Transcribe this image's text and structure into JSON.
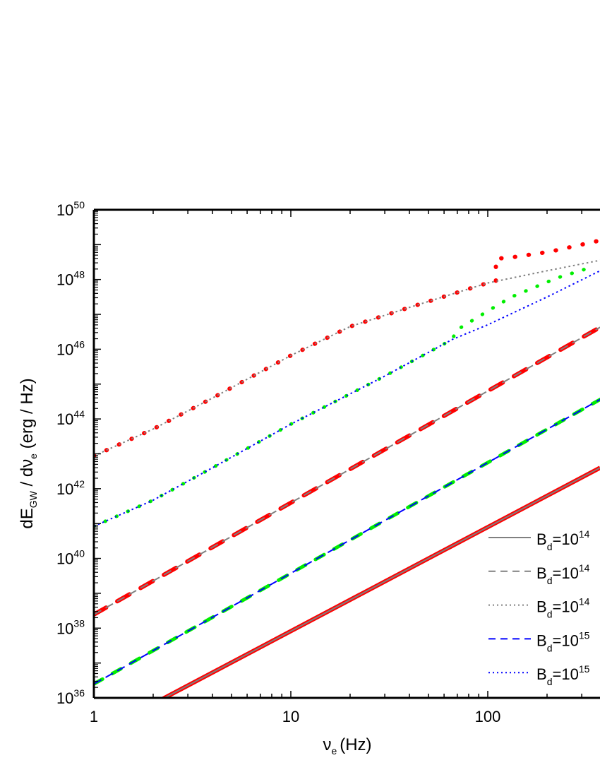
{
  "chart_data": {
    "type": "line",
    "xlabel": "ν",
    "xlabel_sub": "e",
    "xlabel_unit": "(Hz)",
    "ylabel_parts": {
      "d1": "dE",
      "sub1": "GW",
      "mid": " / dν",
      "sub2": "e",
      "unit": " (erg / Hz)"
    },
    "x_scale": "log",
    "y_scale": "log",
    "xlim": [
      1,
      372
    ],
    "ylim_exp": [
      36,
      50
    ],
    "x_tick_labels": [
      "1",
      "10",
      "100"
    ],
    "x_tick_values": [
      1,
      10,
      100
    ],
    "y_tick_base": "10",
    "y_tick_exponents": [
      "36",
      "38",
      "40",
      "42",
      "44",
      "46",
      "48",
      "50"
    ],
    "grid": false,
    "legend_placement": "bottom-right",
    "legend": [
      {
        "base": "B",
        "sub": "d",
        "eq": "=10",
        "exp": "14",
        "style": "solid",
        "color": "#808080"
      },
      {
        "base": "B",
        "sub": "d",
        "eq": "=10",
        "exp": "14",
        "style": "dashed",
        "color": "#808080"
      },
      {
        "base": "B",
        "sub": "d",
        "eq": "=10",
        "exp": "14",
        "style": "dotted",
        "color": "#808080"
      },
      {
        "base": "B",
        "sub": "d",
        "eq": "=10",
        "exp": "15",
        "style": "dashed",
        "color": "#0000ff"
      },
      {
        "base": "B",
        "sub": "d",
        "eq": "=10",
        "exp": "15",
        "style": "dotted",
        "color": "#0000ff"
      }
    ],
    "series": [
      {
        "style": "solid-red",
        "color": "#ff0000",
        "x": [
          1,
          372
        ],
        "log10_y": [
          34.93,
          42.6
        ]
      },
      {
        "name": "B_d=10^14",
        "style": "solid",
        "color": "#808080",
        "x": [
          1,
          372
        ],
        "log10_y": [
          34.93,
          42.6
        ]
      },
      {
        "style": "dashed-red",
        "color": "#ff0000",
        "x": [
          1,
          372
        ],
        "log10_y": [
          38.39,
          46.63
        ]
      },
      {
        "name": "B_d=10^14",
        "style": "dashed",
        "color": "#808080",
        "x": [
          1,
          372
        ],
        "log10_y": [
          38.39,
          46.63
        ]
      },
      {
        "style": "dotted-red",
        "color": "#ff0000",
        "x": [
          1,
          2,
          4,
          10,
          20,
          40,
          100,
          110,
          110,
          127,
          208,
          372
        ],
        "log10_y": [
          42.94,
          43.71,
          44.6,
          45.82,
          46.65,
          47.2,
          47.9,
          47.94,
          48.6,
          48.62,
          48.8,
          49.12
        ]
      },
      {
        "name": "B_d=10^14",
        "style": "dotted",
        "color": "#808080",
        "x": [
          1,
          2,
          4,
          10,
          20,
          40,
          100,
          200,
          372
        ],
        "log10_y": [
          42.94,
          43.71,
          44.6,
          45.82,
          46.65,
          47.2,
          47.9,
          48.25,
          48.55
        ]
      },
      {
        "style": "dashed-green",
        "color": "#00ee00",
        "x": [
          1,
          372
        ],
        "log10_y": [
          36.4,
          44.56
        ]
      },
      {
        "name": "B_d=10^15",
        "style": "dashed",
        "color": "#0000ff",
        "x": [
          1,
          372
        ],
        "log10_y": [
          36.4,
          44.56
        ]
      },
      {
        "style": "dotted-green",
        "color": "#00ee00",
        "x": [
          1,
          2,
          4,
          10,
          20,
          30,
          66,
          69.5,
          101,
          132,
          226,
          345
        ],
        "log10_y": [
          40.92,
          41.67,
          42.6,
          43.85,
          44.72,
          45.23,
          46.28,
          46.55,
          47.11,
          47.5,
          48.05,
          48.37
        ]
      },
      {
        "name": "B_d=10^15",
        "style": "dotted",
        "color": "#0000ff",
        "x": [
          1,
          2,
          4,
          10,
          20,
          30,
          66,
          100,
          200,
          372
        ],
        "log10_y": [
          40.92,
          41.67,
          42.6,
          43.85,
          44.72,
          45.23,
          46.28,
          46.7,
          47.5,
          48.25
        ]
      }
    ]
  }
}
